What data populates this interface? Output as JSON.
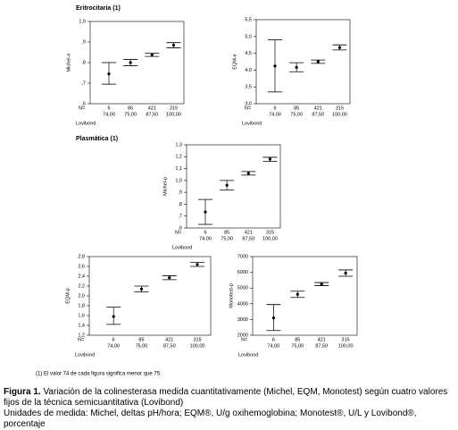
{
  "sections": [
    "Eritrocitaria (1)",
    "Plasmática (1)"
  ],
  "chart_data": [
    {
      "type": "errorbar",
      "y_label": "Michel-e",
      "x_label": "Lovibond",
      "n_label": "N=",
      "n": [
        6,
        85,
        421,
        315
      ],
      "categories": [
        "74,00",
        "75,00",
        "87,50",
        "100,00"
      ],
      "values": [
        0.745,
        0.8,
        0.838,
        0.885
      ],
      "lower": [
        0.695,
        0.785,
        0.83,
        0.872
      ],
      "upper": [
        0.8,
        0.815,
        0.845,
        0.897
      ],
      "ylim": [
        0.6,
        1.0
      ],
      "yticks": [
        {
          "value": 0.6,
          "label": ",6"
        },
        {
          "value": 0.7,
          "label": ",7"
        },
        {
          "value": 0.8,
          "label": ",8"
        },
        {
          "value": 0.9,
          "label": ",9"
        },
        {
          "value": 1.0,
          "label": "1,0"
        }
      ]
    },
    {
      "type": "errorbar",
      "y_label": "EQM-e",
      "x_label": "Lovibond",
      "n_label": "N=",
      "n": [
        6,
        85,
        421,
        315
      ],
      "categories": [
        "74,00",
        "75,00",
        "87,50",
        "100,00"
      ],
      "values": [
        4.12,
        4.08,
        4.25,
        4.67
      ],
      "lower": [
        3.35,
        3.95,
        4.2,
        4.6
      ],
      "upper": [
        4.9,
        4.22,
        4.3,
        4.75
      ],
      "ylim": [
        3.0,
        5.5
      ],
      "yticks": [
        {
          "value": 3.0,
          "label": "3,0"
        },
        {
          "value": 3.5,
          "label": "3,5"
        },
        {
          "value": 4.0,
          "label": "4,0"
        },
        {
          "value": 4.5,
          "label": "4,5"
        },
        {
          "value": 5.0,
          "label": "5,0"
        },
        {
          "value": 5.5,
          "label": "5,5"
        }
      ]
    },
    {
      "type": "errorbar",
      "y_label": "Michel-p",
      "x_label": "Lovibond",
      "n_label": "N=",
      "n": [
        6,
        85,
        421,
        315
      ],
      "categories": [
        "74,00",
        "75,00",
        "87,50",
        "100,00"
      ],
      "values": [
        0.735,
        0.96,
        1.06,
        1.18
      ],
      "lower": [
        0.63,
        0.92,
        1.045,
        1.16
      ],
      "upper": [
        0.84,
        1.0,
        1.075,
        1.195
      ],
      "ylim": [
        0.6,
        1.3
      ],
      "yticks": [
        {
          "value": 0.6,
          "label": ",6"
        },
        {
          "value": 0.7,
          "label": ",7"
        },
        {
          "value": 0.8,
          "label": ",8"
        },
        {
          "value": 0.9,
          "label": ",9"
        },
        {
          "value": 1.0,
          "label": "1,0"
        },
        {
          "value": 1.1,
          "label": "1,1"
        },
        {
          "value": 1.2,
          "label": "1,2"
        },
        {
          "value": 1.3,
          "label": "1,3"
        }
      ]
    },
    {
      "type": "errorbar",
      "y_label": "EQM-p",
      "x_label": "Lovibond",
      "n_label": "N=",
      "n": [
        6,
        85,
        421,
        315
      ],
      "categories": [
        "74,00",
        "75,00",
        "87,50",
        "100,00"
      ],
      "values": [
        1.58,
        2.14,
        2.37,
        2.64
      ],
      "lower": [
        1.42,
        2.08,
        2.33,
        2.6
      ],
      "upper": [
        1.77,
        2.2,
        2.41,
        2.68
      ],
      "ylim": [
        1.2,
        2.8
      ],
      "yticks": [
        {
          "value": 1.2,
          "label": "1,2"
        },
        {
          "value": 1.4,
          "label": "1,4"
        },
        {
          "value": 1.6,
          "label": "1,6"
        },
        {
          "value": 1.8,
          "label": "1,8"
        },
        {
          "value": 2.0,
          "label": "2,0"
        },
        {
          "value": 2.2,
          "label": "2,2"
        },
        {
          "value": 2.4,
          "label": "2,4"
        },
        {
          "value": 2.6,
          "label": "2,6"
        },
        {
          "value": 2.8,
          "label": "2,8"
        }
      ]
    },
    {
      "type": "errorbar",
      "y_label": "Monotest-p",
      "x_label": "Lovibond",
      "n_label": "N=",
      "n": [
        6,
        85,
        421,
        315
      ],
      "categories": [
        "74,00",
        "75,00",
        "87,50",
        "100,00"
      ],
      "values": [
        3100,
        4600,
        5250,
        5950
      ],
      "lower": [
        2300,
        4400,
        5150,
        5750
      ],
      "upper": [
        3950,
        4800,
        5350,
        6150
      ],
      "ylim": [
        2000,
        7000
      ],
      "yticks": [
        2000,
        3000,
        4000,
        5000,
        6000,
        7000
      ]
    }
  ],
  "footnote": "(1) El valor 74 de cada figura significa menor que 75.",
  "caption": {
    "label": "Figura 1.",
    "text": "Variación de la colinesterasa medida cuantitativamente (Michel, EQM, Monotest) según cuatro valores fijos de la técnica semicuantitativa (Lovibond)",
    "units": "Unidades de medida: Michel, deltas pH/hora; EQM®, U/g oxihemoglobina; Monotest®, U/L y Lovibond®, porcentaje"
  }
}
